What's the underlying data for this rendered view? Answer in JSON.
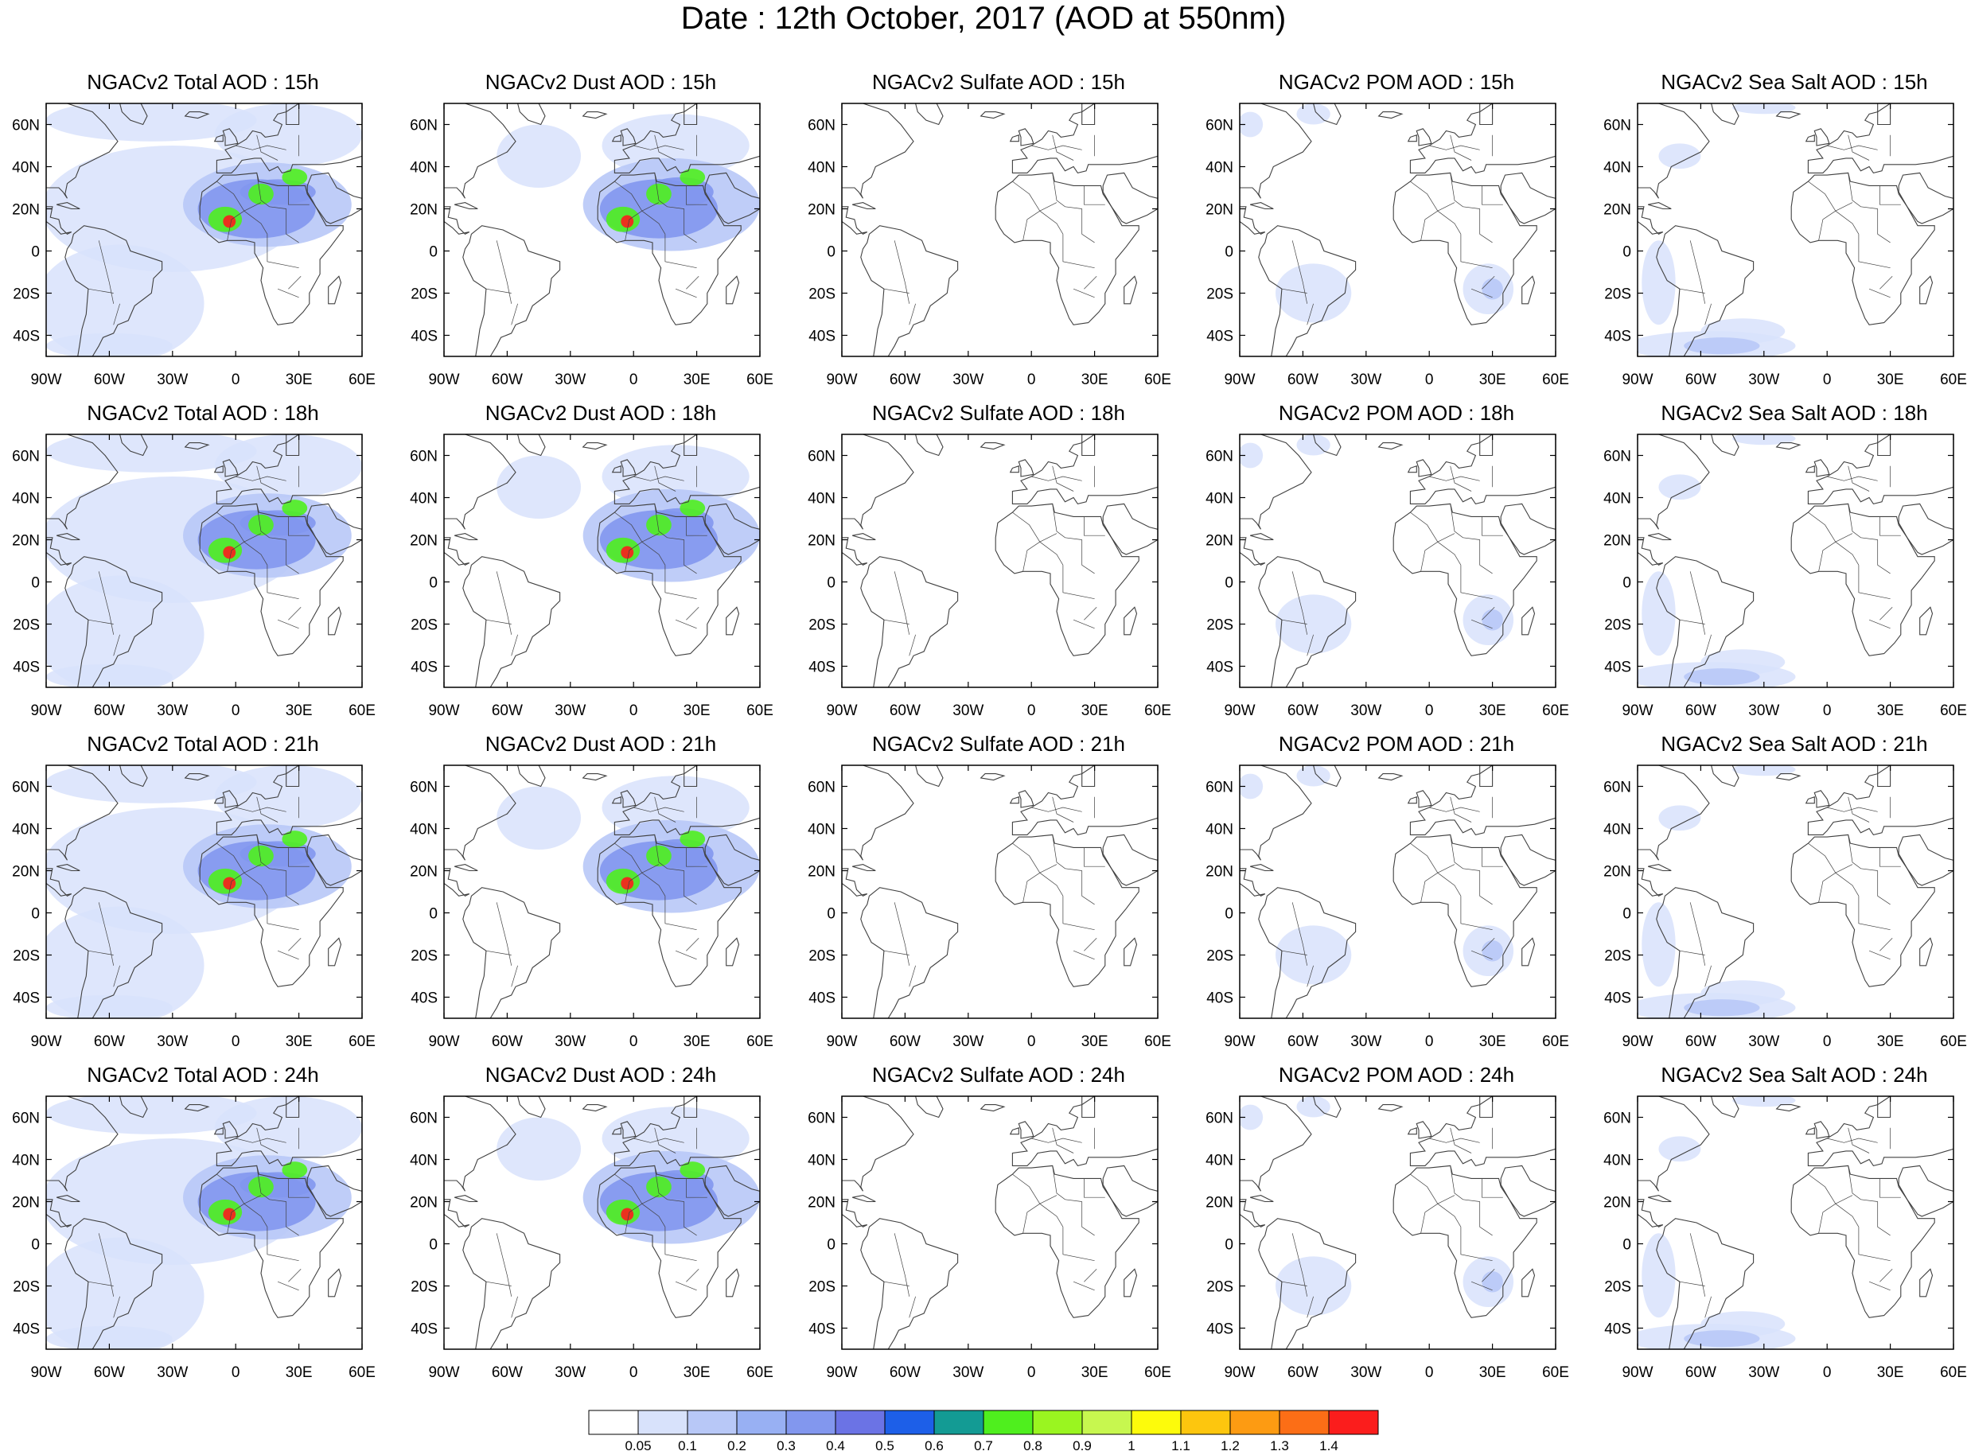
{
  "title": "Date : 12th October, 2017 (AOD at 550nm)",
  "panels": [
    {
      "title": "NGACv2 Total AOD : 15h",
      "species": "total",
      "hour": "15h"
    },
    {
      "title": "NGACv2 Dust AOD : 15h",
      "species": "dust",
      "hour": "15h"
    },
    {
      "title": "NGACv2 Sulfate AOD : 15h",
      "species": "sulfate",
      "hour": "15h"
    },
    {
      "title": "NGACv2 POM AOD : 15h",
      "species": "pom",
      "hour": "15h"
    },
    {
      "title": "NGACv2 Sea Salt AOD : 15h",
      "species": "seasalt",
      "hour": "15h"
    },
    {
      "title": "NGACv2 Total AOD : 18h",
      "species": "total",
      "hour": "18h"
    },
    {
      "title": "NGACv2 Dust AOD : 18h",
      "species": "dust",
      "hour": "18h"
    },
    {
      "title": "NGACv2 Sulfate AOD : 18h",
      "species": "sulfate",
      "hour": "18h"
    },
    {
      "title": "NGACv2 POM AOD : 18h",
      "species": "pom",
      "hour": "18h"
    },
    {
      "title": "NGACv2 Sea Salt AOD : 18h",
      "species": "seasalt",
      "hour": "18h"
    },
    {
      "title": "NGACv2 Total AOD : 21h",
      "species": "total",
      "hour": "21h"
    },
    {
      "title": "NGACv2 Dust AOD : 21h",
      "species": "dust",
      "hour": "21h"
    },
    {
      "title": "NGACv2 Sulfate AOD : 21h",
      "species": "sulfate",
      "hour": "21h"
    },
    {
      "title": "NGACv2 POM AOD : 21h",
      "species": "pom",
      "hour": "21h"
    },
    {
      "title": "NGACv2 Sea Salt AOD : 21h",
      "species": "seasalt",
      "hour": "21h"
    },
    {
      "title": "NGACv2 Total AOD : 24h",
      "species": "total",
      "hour": "24h"
    },
    {
      "title": "NGACv2 Dust AOD : 24h",
      "species": "dust",
      "hour": "24h"
    },
    {
      "title": "NGACv2 Sulfate AOD : 24h",
      "species": "sulfate",
      "hour": "24h"
    },
    {
      "title": "NGACv2 POM AOD : 24h",
      "species": "pom",
      "hour": "24h"
    },
    {
      "title": "NGACv2 Sea Salt  AOD : 24h",
      "species": "seasalt",
      "hour": "24h"
    }
  ],
  "map": {
    "lon_range": [
      -90,
      60
    ],
    "lat_range": [
      -50,
      70
    ],
    "lon_ticks": [
      {
        "value": -90,
        "label": "90W"
      },
      {
        "value": -60,
        "label": "60W"
      },
      {
        "value": -30,
        "label": "30W"
      },
      {
        "value": 0,
        "label": "0"
      },
      {
        "value": 30,
        "label": "30E"
      },
      {
        "value": 60,
        "label": "60E"
      }
    ],
    "lat_ticks": [
      {
        "value": 60,
        "label": "60N"
      },
      {
        "value": 40,
        "label": "40N"
      },
      {
        "value": 20,
        "label": "20N"
      },
      {
        "value": 0,
        "label": "0"
      },
      {
        "value": -20,
        "label": "20S"
      },
      {
        "value": -40,
        "label": "40S"
      }
    ]
  },
  "colorbar": {
    "labels": [
      "0.05",
      "0.1",
      "0.2",
      "0.3",
      "0.4",
      "0.5",
      "0.6",
      "0.7",
      "0.8",
      "0.9",
      "1",
      "1.1",
      "1.2",
      "1.3",
      "1.4"
    ],
    "colors": [
      "#ffffff",
      "#d8e2fb",
      "#b8c8f7",
      "#98b0f3",
      "#8297ee",
      "#6b73e5",
      "#1d5fe8",
      "#139b94",
      "#4fef1e",
      "#9af520",
      "#c7f74f",
      "#fdfb0b",
      "#fdc60e",
      "#fd9b12",
      "#fc6e16",
      "#fb1d1c"
    ]
  },
  "colors": {
    "aod_light": "#d8e2fb",
    "aod_low": "#b8c8f7",
    "aod_mid": "#98b0f3",
    "aod_high": "#8297ee",
    "coast": "#404040"
  }
}
